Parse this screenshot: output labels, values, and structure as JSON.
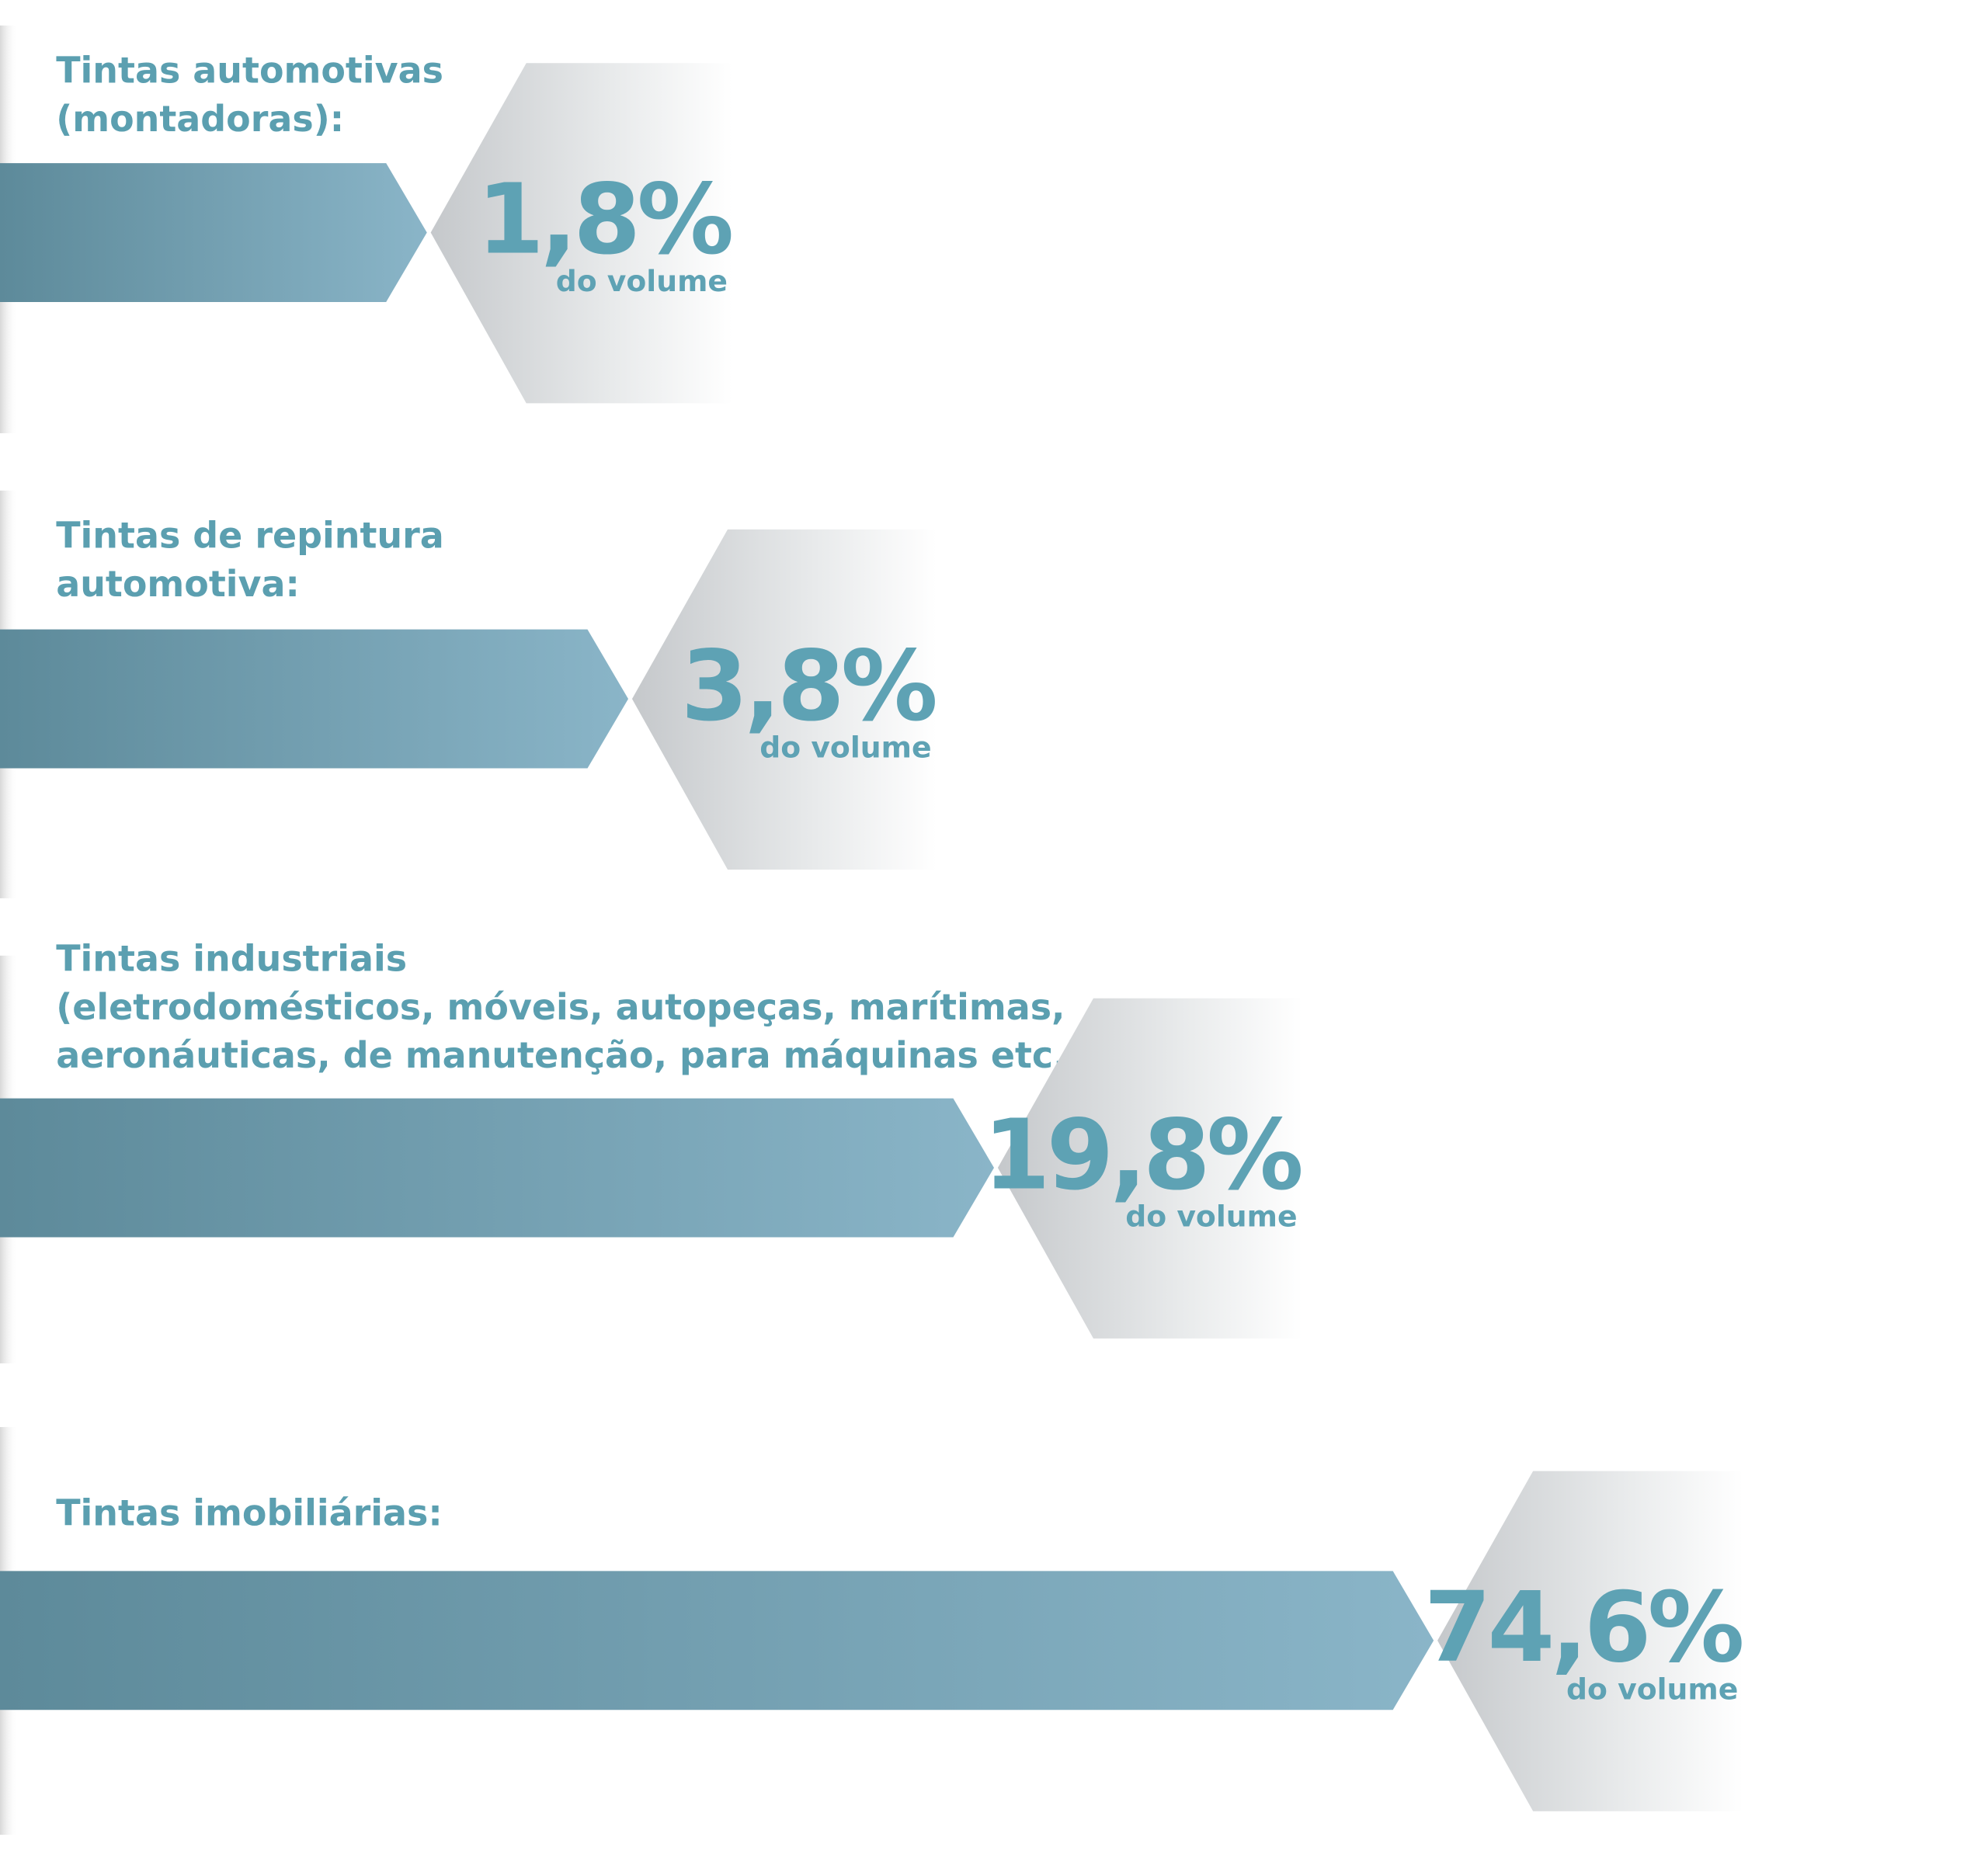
{
  "items": [
    {
      "label": [
        "Tintas automotivas",
        "(montadoras):"
      ],
      "value": "1,8%",
      "unit": "do volume"
    },
    {
      "label": [
        "Tintas de repintura",
        "automotiva:"
      ],
      "value": "3,8%",
      "unit": "do volume"
    },
    {
      "label": [
        "Tintas industriais",
        "(eletrodomésticos, móveis, autopeças, marítimas,",
        "aeronáuticas, de manutenção, para máquinas etc.):"
      ],
      "value": "19,8%",
      "unit": "do volume"
    },
    {
      "label": [
        "Tintas imobiliárias:"
      ],
      "value": "74,6%",
      "unit": "do volume"
    }
  ]
}
